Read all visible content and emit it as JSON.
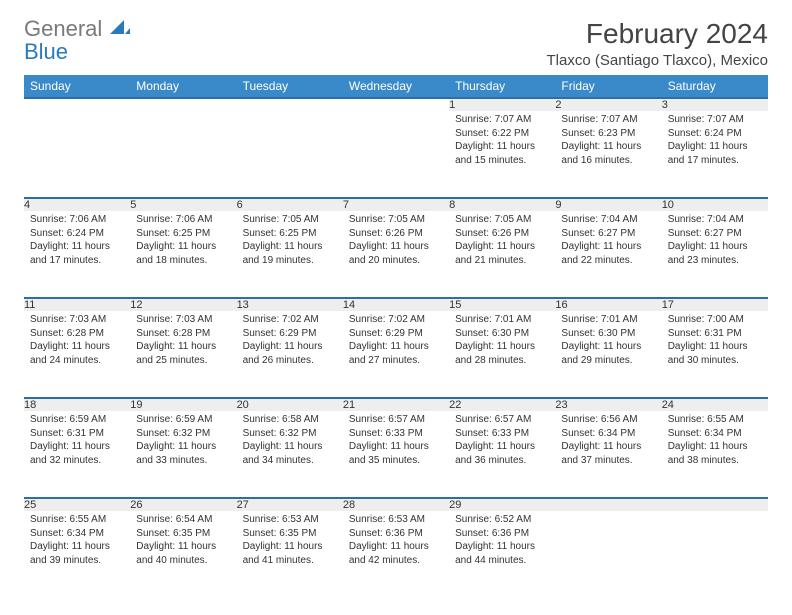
{
  "brand": {
    "word1": "General",
    "word2": "Blue",
    "text_color": "#7a7a7a",
    "accent_color": "#2a7abf"
  },
  "title": {
    "month_year": "February 2024",
    "location": "Tlaxco (Santiago Tlaxco), Mexico",
    "title_fontsize": 28,
    "location_fontsize": 15,
    "text_color": "#444444"
  },
  "calendar": {
    "header_bg": "#3a8ac9",
    "header_text_color": "#ffffff",
    "week_border_color": "#2a6fa8",
    "daynum_bg": "#eeeeee",
    "body_fontsize": 10,
    "day_headers": [
      "Sunday",
      "Monday",
      "Tuesday",
      "Wednesday",
      "Thursday",
      "Friday",
      "Saturday"
    ],
    "weeks": [
      [
        null,
        null,
        null,
        null,
        {
          "n": "1",
          "sr": "7:07 AM",
          "ss": "6:22 PM",
          "dl": "11 hours and 15 minutes."
        },
        {
          "n": "2",
          "sr": "7:07 AM",
          "ss": "6:23 PM",
          "dl": "11 hours and 16 minutes."
        },
        {
          "n": "3",
          "sr": "7:07 AM",
          "ss": "6:24 PM",
          "dl": "11 hours and 17 minutes."
        }
      ],
      [
        {
          "n": "4",
          "sr": "7:06 AM",
          "ss": "6:24 PM",
          "dl": "11 hours and 17 minutes."
        },
        {
          "n": "5",
          "sr": "7:06 AM",
          "ss": "6:25 PM",
          "dl": "11 hours and 18 minutes."
        },
        {
          "n": "6",
          "sr": "7:05 AM",
          "ss": "6:25 PM",
          "dl": "11 hours and 19 minutes."
        },
        {
          "n": "7",
          "sr": "7:05 AM",
          "ss": "6:26 PM",
          "dl": "11 hours and 20 minutes."
        },
        {
          "n": "8",
          "sr": "7:05 AM",
          "ss": "6:26 PM",
          "dl": "11 hours and 21 minutes."
        },
        {
          "n": "9",
          "sr": "7:04 AM",
          "ss": "6:27 PM",
          "dl": "11 hours and 22 minutes."
        },
        {
          "n": "10",
          "sr": "7:04 AM",
          "ss": "6:27 PM",
          "dl": "11 hours and 23 minutes."
        }
      ],
      [
        {
          "n": "11",
          "sr": "7:03 AM",
          "ss": "6:28 PM",
          "dl": "11 hours and 24 minutes."
        },
        {
          "n": "12",
          "sr": "7:03 AM",
          "ss": "6:28 PM",
          "dl": "11 hours and 25 minutes."
        },
        {
          "n": "13",
          "sr": "7:02 AM",
          "ss": "6:29 PM",
          "dl": "11 hours and 26 minutes."
        },
        {
          "n": "14",
          "sr": "7:02 AM",
          "ss": "6:29 PM",
          "dl": "11 hours and 27 minutes."
        },
        {
          "n": "15",
          "sr": "7:01 AM",
          "ss": "6:30 PM",
          "dl": "11 hours and 28 minutes."
        },
        {
          "n": "16",
          "sr": "7:01 AM",
          "ss": "6:30 PM",
          "dl": "11 hours and 29 minutes."
        },
        {
          "n": "17",
          "sr": "7:00 AM",
          "ss": "6:31 PM",
          "dl": "11 hours and 30 minutes."
        }
      ],
      [
        {
          "n": "18",
          "sr": "6:59 AM",
          "ss": "6:31 PM",
          "dl": "11 hours and 32 minutes."
        },
        {
          "n": "19",
          "sr": "6:59 AM",
          "ss": "6:32 PM",
          "dl": "11 hours and 33 minutes."
        },
        {
          "n": "20",
          "sr": "6:58 AM",
          "ss": "6:32 PM",
          "dl": "11 hours and 34 minutes."
        },
        {
          "n": "21",
          "sr": "6:57 AM",
          "ss": "6:33 PM",
          "dl": "11 hours and 35 minutes."
        },
        {
          "n": "22",
          "sr": "6:57 AM",
          "ss": "6:33 PM",
          "dl": "11 hours and 36 minutes."
        },
        {
          "n": "23",
          "sr": "6:56 AM",
          "ss": "6:34 PM",
          "dl": "11 hours and 37 minutes."
        },
        {
          "n": "24",
          "sr": "6:55 AM",
          "ss": "6:34 PM",
          "dl": "11 hours and 38 minutes."
        }
      ],
      [
        {
          "n": "25",
          "sr": "6:55 AM",
          "ss": "6:34 PM",
          "dl": "11 hours and 39 minutes."
        },
        {
          "n": "26",
          "sr": "6:54 AM",
          "ss": "6:35 PM",
          "dl": "11 hours and 40 minutes."
        },
        {
          "n": "27",
          "sr": "6:53 AM",
          "ss": "6:35 PM",
          "dl": "11 hours and 41 minutes."
        },
        {
          "n": "28",
          "sr": "6:53 AM",
          "ss": "6:36 PM",
          "dl": "11 hours and 42 minutes."
        },
        {
          "n": "29",
          "sr": "6:52 AM",
          "ss": "6:36 PM",
          "dl": "11 hours and 44 minutes."
        },
        null,
        null
      ]
    ],
    "labels": {
      "sunrise": "Sunrise:",
      "sunset": "Sunset:",
      "daylight": "Daylight:"
    }
  }
}
